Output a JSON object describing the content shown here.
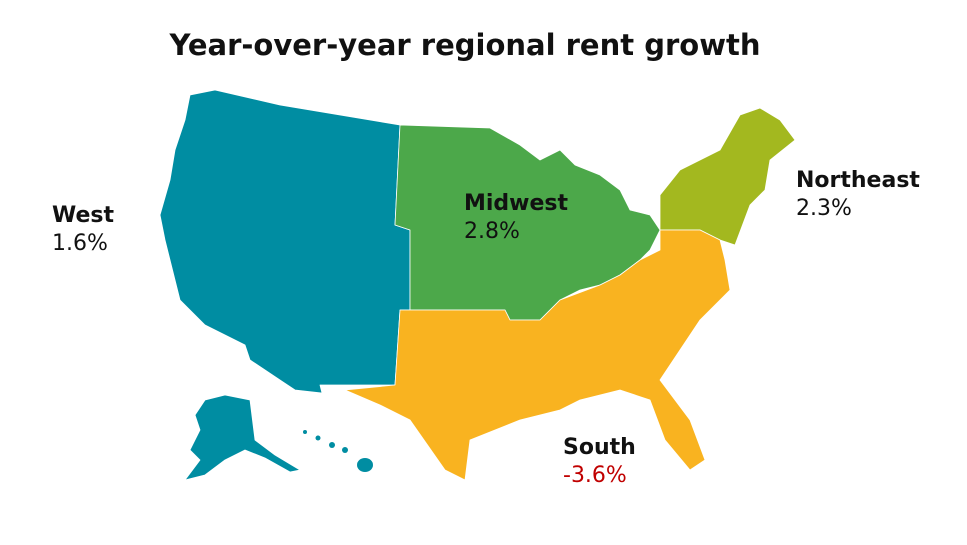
{
  "title": "Year-over-year regional rent growth",
  "colors": {
    "west": "#008da2",
    "midwest": "#4ca84a",
    "northeast": "#a3b81f",
    "south": "#f9b320",
    "negative": "#c00000"
  },
  "regions": [
    {
      "name": "West",
      "value": "1.6%"
    },
    {
      "name": "Midwest",
      "value": "2.8%"
    },
    {
      "name": "Northeast",
      "value": "2.3%"
    },
    {
      "name": "South",
      "value": "-3.6%"
    }
  ]
}
